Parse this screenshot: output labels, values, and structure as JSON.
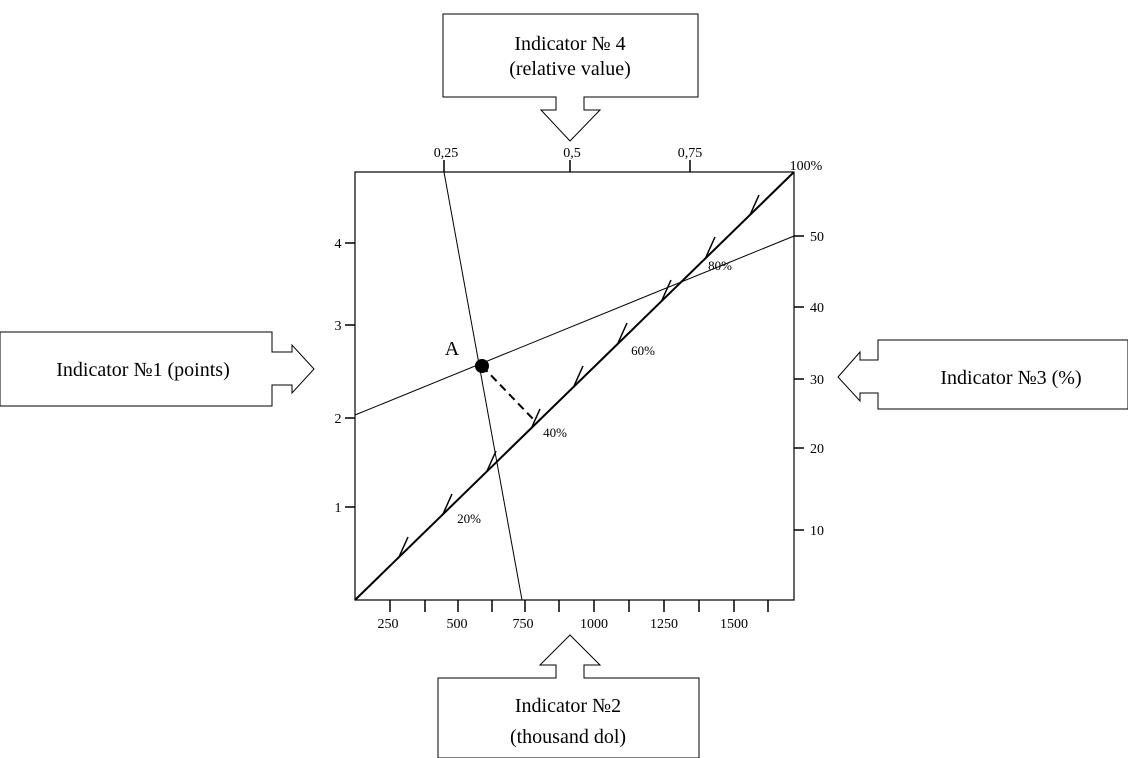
{
  "boxes": {
    "top_line1": "Indicator № 4",
    "top_line2": "(relative value)",
    "left": "Indicator №1 (points)",
    "right": "Indicator №3 (%)",
    "bottom_line1": "Indicator №2",
    "bottom_line2": "(thousand dol)"
  },
  "top_axis": {
    "ticks": [
      "0,25",
      "0,5",
      "0,75",
      "100%"
    ]
  },
  "left_axis": {
    "ticks": [
      "1",
      "2",
      "3",
      "4"
    ]
  },
  "right_axis": {
    "ticks": [
      "10",
      "20",
      "30",
      "40",
      "50"
    ]
  },
  "bottom_axis": {
    "ticks": [
      "250",
      "500",
      "750",
      "1000",
      "1250",
      "1500"
    ]
  },
  "diagonal": {
    "ticks": [
      "20%",
      "40%",
      "60%",
      "80%"
    ]
  },
  "point": {
    "label": "A"
  },
  "chart_data": {
    "type": "nomogram",
    "axes": {
      "left": {
        "name": "Indicator №1 (points)",
        "ticks": [
          1,
          2,
          3,
          4
        ]
      },
      "bottom": {
        "name": "Indicator №2 (thousand dol)",
        "ticks": [
          250,
          500,
          750,
          1000,
          1250,
          1500
        ]
      },
      "right": {
        "name": "Indicator №3 (%)",
        "ticks": [
          10,
          20,
          30,
          40,
          50
        ]
      },
      "top": {
        "name": "Indicator № 4 (relative value)",
        "ticks": [
          "0,25",
          "0,5",
          "0,75",
          "100%"
        ]
      },
      "diagonal": {
        "ticks": [
          "20%",
          "40%",
          "60%",
          "80%"
        ]
      }
    },
    "lines": [
      {
        "from": "left axis 2",
        "to": "right axis 50"
      },
      {
        "from": "top axis 0,25",
        "to": "bottom axis 750"
      }
    ],
    "points": [
      {
        "label": "A"
      }
    ]
  }
}
